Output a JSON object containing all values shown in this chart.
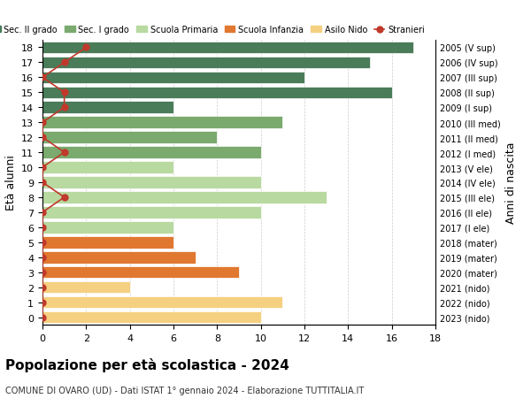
{
  "ages": [
    18,
    17,
    16,
    15,
    14,
    13,
    12,
    11,
    10,
    9,
    8,
    7,
    6,
    5,
    4,
    3,
    2,
    1,
    0
  ],
  "years": [
    "2005 (V sup)",
    "2006 (IV sup)",
    "2007 (III sup)",
    "2008 (II sup)",
    "2009 (I sup)",
    "2010 (III med)",
    "2011 (II med)",
    "2012 (I med)",
    "2013 (V ele)",
    "2014 (IV ele)",
    "2015 (III ele)",
    "2016 (II ele)",
    "2017 (I ele)",
    "2018 (mater)",
    "2019 (mater)",
    "2020 (mater)",
    "2021 (nido)",
    "2022 (nido)",
    "2023 (nido)"
  ],
  "bar_values": [
    17,
    15,
    12,
    16,
    6,
    11,
    8,
    10,
    6,
    10,
    13,
    10,
    6,
    6,
    7,
    9,
    4,
    11,
    10
  ],
  "bar_colors": [
    "#4a7c59",
    "#4a7c59",
    "#4a7c59",
    "#4a7c59",
    "#4a7c59",
    "#7aaa6e",
    "#7aaa6e",
    "#7aaa6e",
    "#b8d9a0",
    "#b8d9a0",
    "#b8d9a0",
    "#b8d9a0",
    "#b8d9a0",
    "#e07830",
    "#e07830",
    "#e07830",
    "#f5d080",
    "#f5d080",
    "#f5d080"
  ],
  "stranieri_values": [
    2,
    1,
    0,
    1,
    1,
    0,
    0,
    1,
    0,
    0,
    1,
    0,
    0,
    0,
    0,
    0,
    0,
    0,
    0
  ],
  "stranieri_color": "#c0392b",
  "legend_labels": [
    "Sec. II grado",
    "Sec. I grado",
    "Scuola Primaria",
    "Scuola Infanzia",
    "Asilo Nido",
    "Stranieri"
  ],
  "legend_colors": [
    "#4a7c59",
    "#7aaa6e",
    "#b8d9a0",
    "#e07830",
    "#f5d080",
    "#c0392b"
  ],
  "xlabel": "",
  "ylabel": "Età alunni",
  "ylabel_right": "Anni di nascita",
  "title": "Popolazione per età scolastica - 2024",
  "subtitle": "COMUNE DI OVARO (UD) - Dati ISTAT 1° gennaio 2024 - Elaborazione TUTTITALIA.IT",
  "xlim": [
    0,
    18
  ],
  "background_color": "#ffffff",
  "grid_color": "#cccccc"
}
